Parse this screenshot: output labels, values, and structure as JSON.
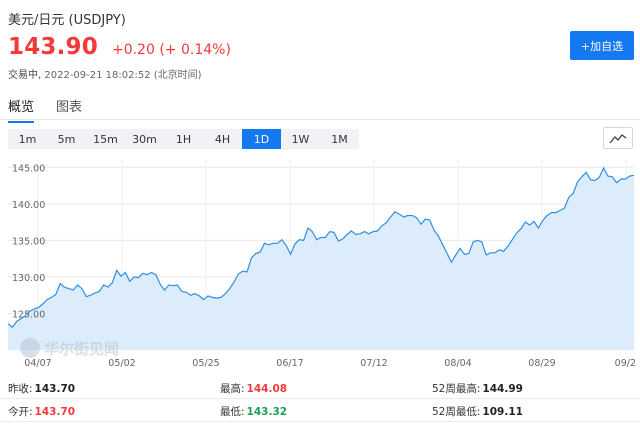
{
  "header": {
    "title": "美元/日元  (USDJPY)",
    "price": "143.90",
    "change": "+0.20 (+ 0.14%)",
    "status_label": "交易中,",
    "timestamp": "2022-09-21 18:02:52 (北京时间)",
    "add_watchlist": "+加自选"
  },
  "tabs": [
    "概览",
    "图表"
  ],
  "periods": [
    "1m",
    "5m",
    "15m",
    "30m",
    "1H",
    "4H",
    "1D",
    "1W",
    "1M"
  ],
  "active_period": "1D",
  "colors": {
    "up": "#f23a3a",
    "down": "#1aa05a",
    "accent": "#1478f0",
    "area": "#dcecfa",
    "line": "#2f8fe6"
  },
  "icons": {
    "chart_type": "line-chart-icon"
  },
  "watermark": "华尔街见闻",
  "chart_data": {
    "type": "area",
    "x_ticks": [
      "04/07",
      "05/02",
      "05/25",
      "06/17",
      "07/12",
      "08/04",
      "08/29",
      "09/2"
    ],
    "y_ticks": [
      "125.00",
      "130.00",
      "135.00",
      "140.00",
      "145.00"
    ],
    "ylim": [
      120,
      146
    ],
    "grid": true,
    "series": [
      {
        "values": [
          123.6,
          123.1,
          123.9,
          124.3,
          124.7,
          125.3,
          125.6,
          125.8,
          126.3,
          126.9,
          127.2,
          127.6,
          129.1,
          128.6,
          128.4,
          128.2,
          128.9,
          128.4,
          127.3,
          127.5,
          127.8,
          128.0,
          128.9,
          128.6,
          129.2,
          130.9,
          130.1,
          130.6,
          129.4,
          130.0,
          129.9,
          130.5,
          130.3,
          130.6,
          130.3,
          129.0,
          128.2,
          128.9,
          128.8,
          128.9,
          128.0,
          127.9,
          127.5,
          127.7,
          127.4,
          126.9,
          127.4,
          127.2,
          127.1,
          127.2,
          127.7,
          128.4,
          129.3,
          130.4,
          130.8,
          130.7,
          132.6,
          133.2,
          133.4,
          134.6,
          134.4,
          134.6,
          134.6,
          135.1,
          134.3,
          133.1,
          134.5,
          135.1,
          135.0,
          136.7,
          136.2,
          135.1,
          135.4,
          135.4,
          136.2,
          136.1,
          134.9,
          135.2,
          135.8,
          136.3,
          135.8,
          135.9,
          136.2,
          135.9,
          136.2,
          136.3,
          137.0,
          137.4,
          138.2,
          138.9,
          138.6,
          138.2,
          138.4,
          138.4,
          138.1,
          137.2,
          137.9,
          137.8,
          136.4,
          135.6,
          134.4,
          133.2,
          132.0,
          133.0,
          133.9,
          133.1,
          133.2,
          134.8,
          135.0,
          134.8,
          133.0,
          133.3,
          133.3,
          133.7,
          133.5,
          134.2,
          135.1,
          136.0,
          136.6,
          137.5,
          137.1,
          137.6,
          136.7,
          137.7,
          138.4,
          138.8,
          138.8,
          139.1,
          139.4,
          140.9,
          141.4,
          143.0,
          143.7,
          144.3,
          143.3,
          143.2,
          143.6,
          144.9,
          143.8,
          143.7,
          142.9,
          143.4,
          143.4,
          143.8,
          143.9
        ]
      }
    ]
  },
  "stats": {
    "prev_close_label": "昨收:",
    "prev_close": "143.70",
    "high_label": "最高:",
    "high": "144.08",
    "week52_high_label": "52周最高:",
    "week52_high": "144.99",
    "open_label": "今开:",
    "open": "143.70",
    "low_label": "最低:",
    "low": "143.32",
    "week52_low_label": "52周最低:",
    "week52_low": "109.11"
  }
}
